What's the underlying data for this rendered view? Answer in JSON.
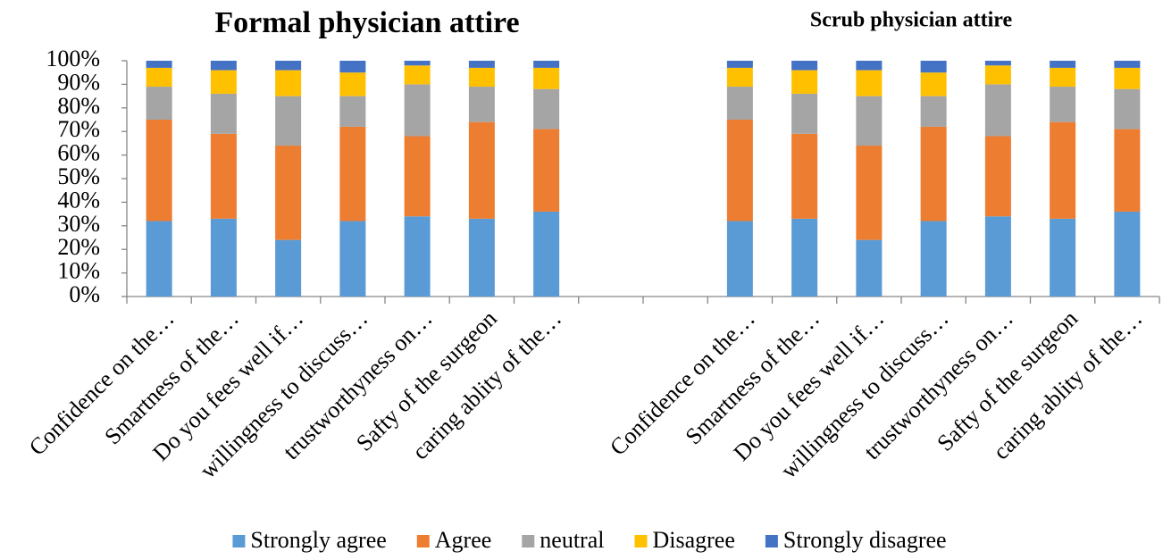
{
  "chart_data": {
    "type": "stacked_bar",
    "titles": [
      "Formal physician attire",
      "Scrub physician attire"
    ],
    "categories": [
      "Confidence on the…",
      "Smartness of the…",
      "Do you fees well if…",
      "willingness to discuss…",
      "trustworthyness on…",
      "Safty of the surgeon",
      "caring ablity of the…",
      null,
      null,
      "Confidence on the…",
      "Smartness of the…",
      "Do you fees well if…",
      "willingness to discuss…",
      "trustworthyness on…",
      "Safty of the surgeon",
      "caring ablity of the…"
    ],
    "series": [
      {
        "name": "Strongly agree",
        "color": "#5b9bd5",
        "values": [
          32,
          33,
          24,
          32,
          34,
          33,
          36,
          null,
          null,
          32,
          33,
          24,
          32,
          34,
          33,
          36
        ]
      },
      {
        "name": "Agree",
        "color": "#ed7d31",
        "values": [
          43,
          36,
          40,
          40,
          34,
          41,
          35,
          null,
          null,
          43,
          36,
          40,
          40,
          34,
          41,
          35
        ]
      },
      {
        "name": "neutral",
        "color": "#a5a5a5",
        "values": [
          14,
          17,
          21,
          13,
          22,
          15,
          17,
          null,
          null,
          14,
          17,
          21,
          13,
          22,
          15,
          17
        ]
      },
      {
        "name": "Disagree",
        "color": "#ffc000",
        "values": [
          8,
          10,
          11,
          10,
          8,
          8,
          9,
          null,
          null,
          8,
          10,
          11,
          10,
          8,
          8,
          9
        ]
      },
      {
        "name": "Strongly disagree",
        "color": "#4472c4",
        "values": [
          3,
          4,
          4,
          5,
          2,
          3,
          3,
          null,
          null,
          3,
          4,
          4,
          5,
          2,
          3,
          3
        ]
      }
    ],
    "ylim": [
      0,
      100
    ],
    "yticks": [
      {
        "value": 0,
        "label": "0%"
      },
      {
        "value": 10,
        "label": "10%"
      },
      {
        "value": 20,
        "label": "20%"
      },
      {
        "value": 30,
        "label": "30%"
      },
      {
        "value": 40,
        "label": "40%"
      },
      {
        "value": 50,
        "label": "50%"
      },
      {
        "value": 60,
        "label": "60%"
      },
      {
        "value": 70,
        "label": "70%"
      },
      {
        "value": 80,
        "label": "80%"
      },
      {
        "value": 90,
        "label": "90%"
      },
      {
        "value": 100,
        "label": "100%"
      }
    ],
    "grid": false,
    "legend": "bottom"
  }
}
